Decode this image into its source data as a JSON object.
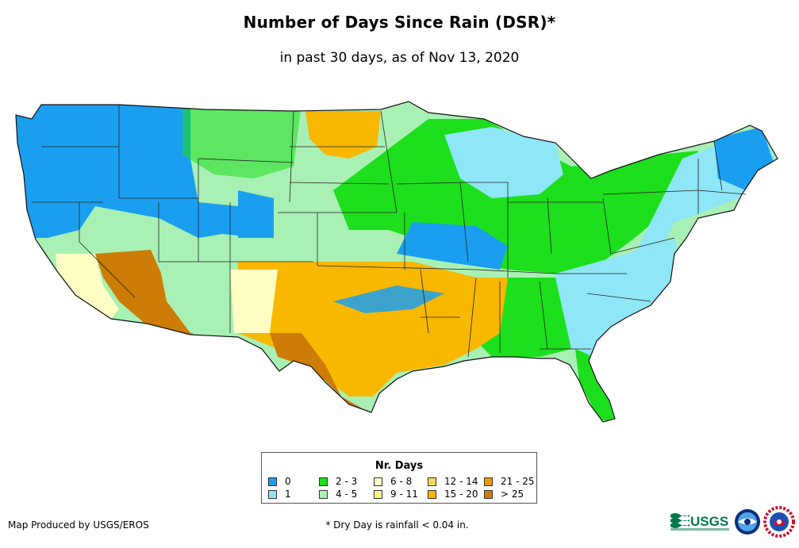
{
  "header": {
    "title": "Number of Days Since Rain (DSR)*",
    "subtitle": "in past 30 days, as of Nov 13, 2020"
  },
  "map": {
    "region": "Contiguous United States",
    "layer": "days-since-rain"
  },
  "legend": {
    "title": "Nr. Days",
    "items": [
      {
        "label": "0",
        "color": "#1a9ff0"
      },
      {
        "label": "1",
        "color": "#8fe6f6"
      },
      {
        "label": "2 - 3",
        "color": "#1ddf1d"
      },
      {
        "label": "4 - 5",
        "color": "#a9f0b4"
      },
      {
        "label": "6 - 8",
        "color": "#ffffc4"
      },
      {
        "label": "9 - 11",
        "color": "#fcf581"
      },
      {
        "label": "12 - 14",
        "color": "#f4d65f"
      },
      {
        "label": "15 - 20",
        "color": "#f8b800"
      },
      {
        "label": "21 - 25",
        "color": "#ec9a08"
      },
      {
        "label": "> 25",
        "color": "#cd7c05"
      }
    ]
  },
  "footer": {
    "credit": "Map Produced by USGS/EROS",
    "footnote": "* Dry Day is rainfall < 0.04 in.",
    "logos": [
      "usgs-logo",
      "noaa-logo",
      "nws-logo"
    ]
  }
}
